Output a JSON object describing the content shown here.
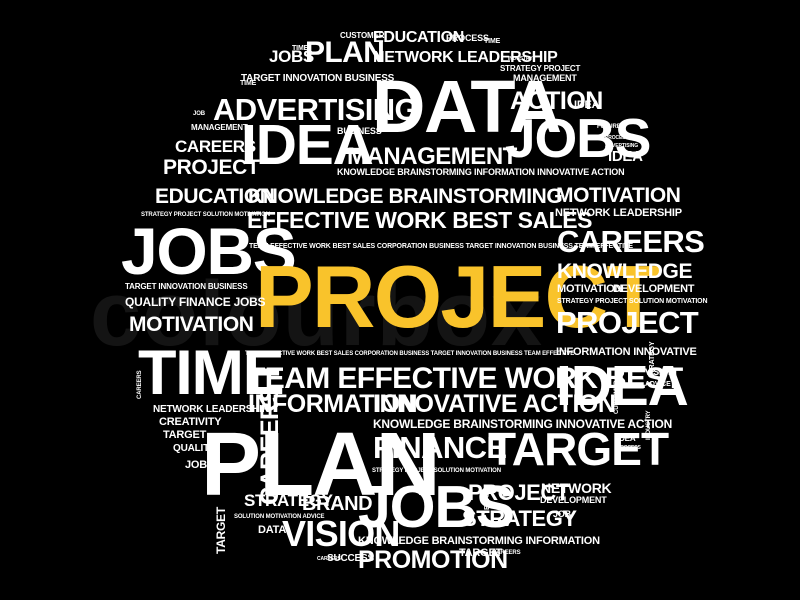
{
  "watermark": "colourbox",
  "colors": {
    "background": "#000000",
    "text": "#ffffff",
    "accent": "#f9c32b"
  },
  "words": [
    {
      "text": "CUSTOMER",
      "role": "normal"
    },
    {
      "text": "EDUCATION",
      "role": "normal"
    },
    {
      "text": "PROCESS",
      "role": "normal"
    },
    {
      "text": "TIME",
      "role": "normal"
    },
    {
      "text": "TIME",
      "role": "normal"
    },
    {
      "text": "JOBS",
      "role": "normal"
    },
    {
      "text": "PLAN",
      "role": "normal"
    },
    {
      "text": "NETWORK LEADERSHIP",
      "role": "normal"
    },
    {
      "text": "INDUSTRY",
      "role": "normal"
    },
    {
      "text": "TIME",
      "role": "normal"
    },
    {
      "text": "STRATEGY PROJECT",
      "role": "normal"
    },
    {
      "text": "TARGET INNOVATION BUSINESS",
      "role": "normal"
    },
    {
      "text": "DATA",
      "role": "normal"
    },
    {
      "text": "MANAGEMENT",
      "role": "normal"
    },
    {
      "text": "ADVERTISING",
      "role": "normal"
    },
    {
      "text": "ACTION",
      "role": "normal"
    },
    {
      "text": "IDEA",
      "role": "normal"
    },
    {
      "text": "JOB",
      "role": "normal"
    },
    {
      "text": "MANAGEMENT",
      "role": "normal"
    },
    {
      "text": "BUSINESS",
      "role": "normal"
    },
    {
      "text": "FUTURE",
      "role": "normal"
    },
    {
      "text": "CAREERS",
      "role": "normal"
    },
    {
      "text": "IDEA",
      "role": "normal"
    },
    {
      "text": "JOBS",
      "role": "normal"
    },
    {
      "text": "PROCESS",
      "role": "normal"
    },
    {
      "text": "ADVERTISING",
      "role": "normal"
    },
    {
      "text": "PROJECT",
      "role": "normal"
    },
    {
      "text": "MANAGEMENT",
      "role": "normal"
    },
    {
      "text": "IDEA",
      "role": "normal"
    },
    {
      "text": "KNOWLEDGE BRAINSTORMING INFORMATION INNOVATIVE ACTION",
      "role": "normal"
    },
    {
      "text": "EDUCATION",
      "role": "normal"
    },
    {
      "text": "KNOWLEDGE BRAINSTORMING",
      "role": "normal"
    },
    {
      "text": "MOTIVATION",
      "role": "normal"
    },
    {
      "text": "STRATEGY PROJECT SOLUTION MOTIVATION",
      "role": "normal"
    },
    {
      "text": "NETWORK LEADERSHIP",
      "role": "normal"
    },
    {
      "text": "EFFECTIVE WORK BEST SALES",
      "role": "normal"
    },
    {
      "text": "JOBS",
      "role": "normal"
    },
    {
      "text": "TEAM EFFECTIVE WORK BEST SALES CORPORATION BUSINESS TARGET INNOVATION BUSINESS TEAM EFFECTIVE",
      "role": "normal"
    },
    {
      "text": "CAREERS",
      "role": "normal"
    },
    {
      "text": "PROJECT",
      "role": "accent"
    },
    {
      "text": "KNOWLEDGE",
      "role": "normal"
    },
    {
      "text": "TARGET INNOVATION BUSINESS",
      "role": "normal"
    },
    {
      "text": "MOTIVATION",
      "role": "normal"
    },
    {
      "text": "DEVELOPMENT",
      "role": "normal"
    },
    {
      "text": "QUALITY FINANCE JOBS",
      "role": "normal"
    },
    {
      "text": "STRATEGY PROJECT SOLUTION MOTIVATION",
      "role": "normal"
    },
    {
      "text": "MOTIVATION",
      "role": "normal"
    },
    {
      "text": "PROJECT",
      "role": "normal"
    },
    {
      "text": "STRATEGY",
      "role": "normal"
    },
    {
      "text": "CAREERS",
      "role": "normal"
    },
    {
      "text": "TIME",
      "role": "normal"
    },
    {
      "text": "TEAM EFFECTIVE WORK BEST SALES CORPORATION BUSINESS TARGET INNOVATION BUSINESS TEAM EFFECTIVE",
      "role": "normal"
    },
    {
      "text": "INFORMATION INNOVATIVE",
      "role": "normal"
    },
    {
      "text": "TEAM EFFECTIVE WORK BEST",
      "role": "normal"
    },
    {
      "text": "IDEA",
      "role": "normal"
    },
    {
      "text": "CUSTOMER",
      "role": "normal"
    },
    {
      "text": "VISION",
      "role": "normal"
    },
    {
      "text": "ADVICE",
      "role": "normal"
    },
    {
      "text": "INDUSTRY",
      "role": "normal"
    },
    {
      "text": "INFORMATION",
      "role": "normal"
    },
    {
      "text": "INNOVATIVE ACTION",
      "role": "normal"
    },
    {
      "text": "NETWORK LEADERSHIP",
      "role": "normal"
    },
    {
      "text": "CREATIVITY",
      "role": "normal"
    },
    {
      "text": "KNOWLEDGE BRAINSTORMING INNOVATIVE ACTION",
      "role": "normal"
    },
    {
      "text": "TARGET",
      "role": "normal"
    },
    {
      "text": "PLAN",
      "role": "normal"
    },
    {
      "text": "CAREERS",
      "role": "normal"
    },
    {
      "text": "FINANCE",
      "role": "normal"
    },
    {
      "text": "TARGET",
      "role": "normal"
    },
    {
      "text": "IDEA",
      "role": "normal"
    },
    {
      "text": "PROCESS",
      "role": "normal"
    },
    {
      "text": "QUALITY",
      "role": "normal"
    },
    {
      "text": "BRAND",
      "role": "normal"
    },
    {
      "text": "JOB",
      "role": "normal"
    },
    {
      "text": "STRATEGY PROJECT SOLUTION MOTIVATION",
      "role": "normal"
    },
    {
      "text": "NETWORK",
      "role": "normal"
    },
    {
      "text": "TARGET",
      "role": "normal"
    },
    {
      "text": "PROJECT",
      "role": "normal"
    },
    {
      "text": "DEVELOPMENT",
      "role": "normal"
    },
    {
      "text": "STRATEGY",
      "role": "normal"
    },
    {
      "text": "BRAND",
      "role": "normal"
    },
    {
      "text": "JOBS",
      "role": "normal"
    },
    {
      "text": "STRATEGY",
      "role": "normal"
    },
    {
      "text": "JOB",
      "role": "normal"
    },
    {
      "text": "SOLUTION MOTIVATION ADVICE",
      "role": "normal"
    },
    {
      "text": "DATA",
      "role": "normal"
    },
    {
      "text": "VISION",
      "role": "normal"
    },
    {
      "text": "KNOWLEDGE BRAINSTORMING INFORMATION",
      "role": "normal"
    },
    {
      "text": "CAREERS",
      "role": "normal"
    },
    {
      "text": "SUCCESS",
      "role": "normal"
    },
    {
      "text": "PROMOTION",
      "role": "normal"
    },
    {
      "text": "TARGET",
      "role": "normal"
    },
    {
      "text": "CAREERS",
      "role": "normal"
    }
  ]
}
